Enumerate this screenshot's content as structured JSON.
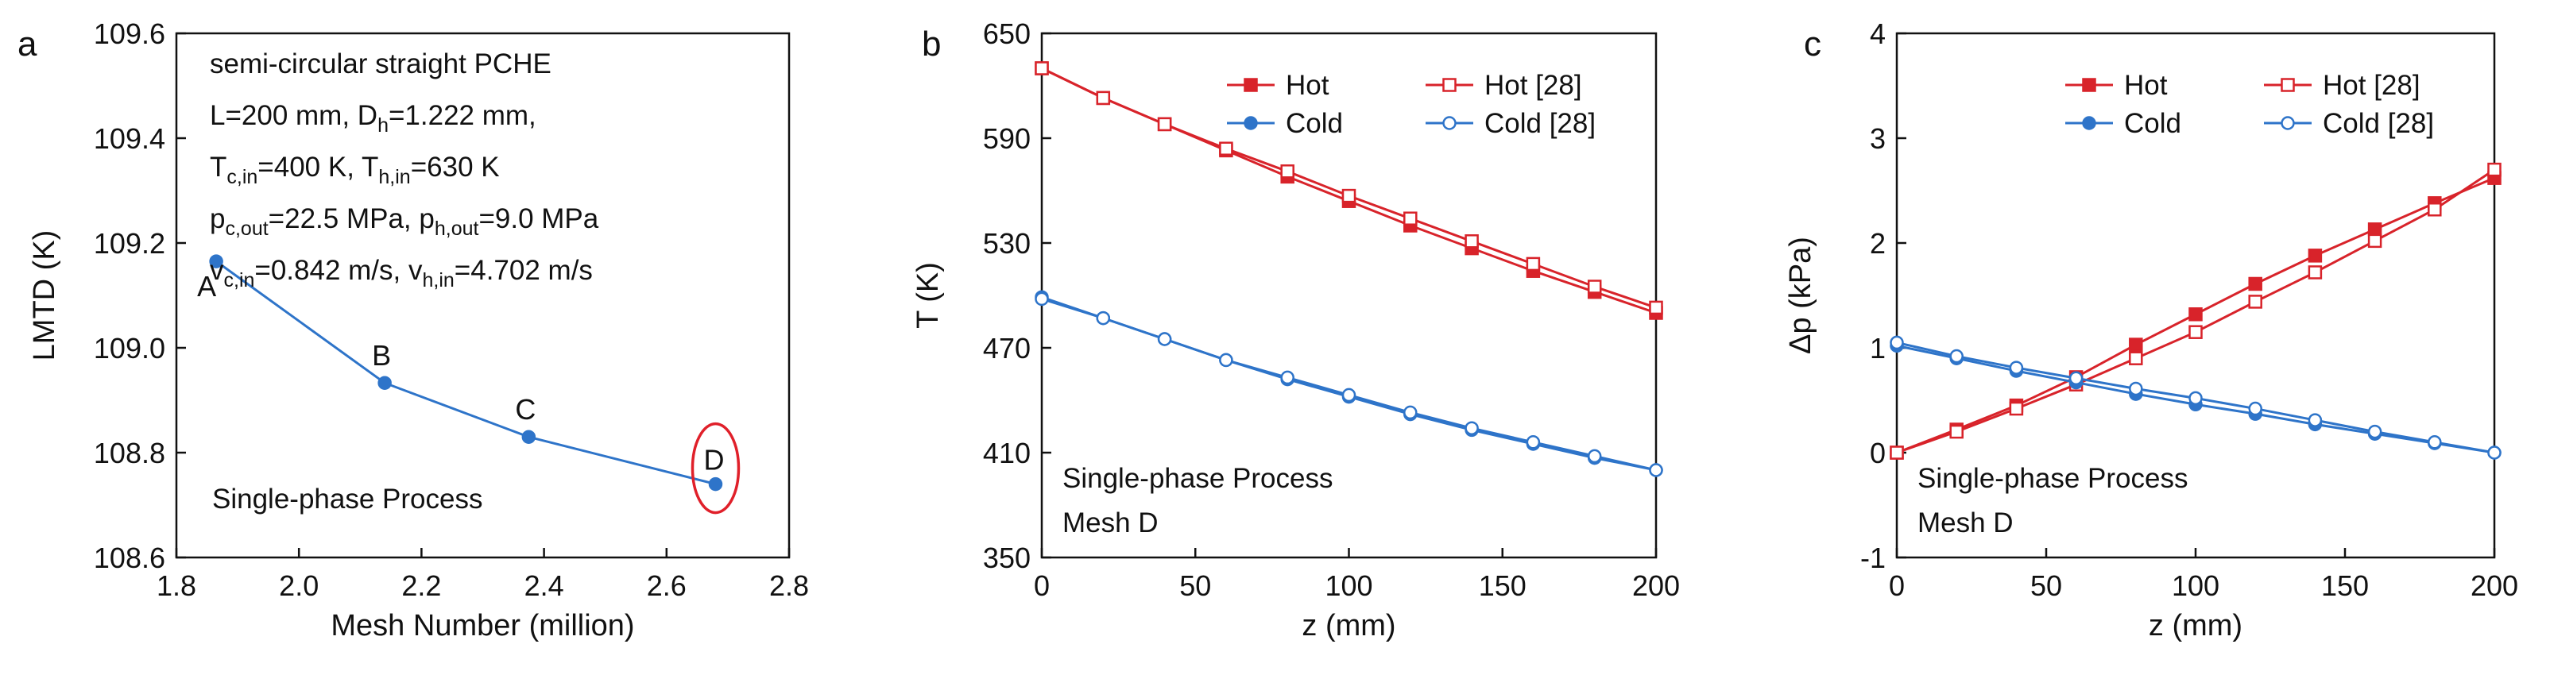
{
  "chart_data": [
    {
      "panel_label": "a",
      "type": "line",
      "xlabel": "Mesh Number (million)",
      "ylabel": "LMTD (K)",
      "xlim": [
        1.8,
        2.8
      ],
      "ylim": [
        108.6,
        109.6
      ],
      "xticks": [
        "1.8",
        "2.0",
        "2.2",
        "2.4",
        "2.6",
        "2.8"
      ],
      "yticks": [
        "108.6",
        "108.8",
        "109.0",
        "109.2",
        "109.4",
        "109.6"
      ],
      "grid": false,
      "series": [
        {
          "name": "LMTD",
          "color": "#2e74c9",
          "marker": "filled-circle",
          "x": [
            1.865,
            2.14,
            2.375,
            2.68
          ],
          "y": [
            109.165,
            108.933,
            108.83,
            108.74
          ]
        }
      ],
      "point_labels": [
        "A",
        "B",
        "C",
        "D"
      ],
      "highlight_point": "D",
      "highlight_color": "#e0202a",
      "annotation_lines": [
        {
          "t": "semi-circular straight PCHE"
        },
        {
          "parts": [
            {
              "t": "L=200 mm, D"
            },
            {
              "t": "h",
              "sub": true
            },
            {
              "t": "=1.222 mm,"
            }
          ]
        },
        {
          "parts": [
            {
              "t": "T"
            },
            {
              "t": "c,in",
              "sub": true
            },
            {
              "t": "=400 K, T"
            },
            {
              "t": "h,in",
              "sub": true
            },
            {
              "t": "=630 K"
            }
          ]
        },
        {
          "parts": [
            {
              "t": "p"
            },
            {
              "t": "c,out",
              "sub": true
            },
            {
              "t": "=22.5 MPa, p"
            },
            {
              "t": "h,out",
              "sub": true
            },
            {
              "t": "=9.0 MPa"
            }
          ]
        },
        {
          "parts": [
            {
              "t": "v"
            },
            {
              "t": "c,in",
              "sub": true
            },
            {
              "t": "=0.842 m/s, v"
            },
            {
              "t": "h,in",
              "sub": true
            },
            {
              "t": "=4.702 m/s"
            }
          ]
        }
      ],
      "note": "Single-phase Process"
    },
    {
      "panel_label": "b",
      "type": "line",
      "xlabel": "z (mm)",
      "ylabel": "T (K)",
      "xlim": [
        0,
        200
      ],
      "ylim": [
        350,
        650
      ],
      "xticks": [
        "0",
        "50",
        "100",
        "150",
        "200"
      ],
      "yticks": [
        "350",
        "410",
        "470",
        "530",
        "590",
        "650"
      ],
      "grid": false,
      "legend": [
        "Hot",
        "Hot [28]",
        "Cold",
        "Cold [28]"
      ],
      "legend_position": "top-right",
      "series": [
        {
          "name": "Hot",
          "color": "#d8232a",
          "marker": "filled-square",
          "x": [
            0,
            20,
            40,
            60,
            80,
            100,
            120,
            140,
            160,
            180,
            200
          ],
          "y": [
            630,
            613,
            598,
            583,
            568,
            554,
            540,
            527,
            514,
            502,
            490
          ]
        },
        {
          "name": "Hot [28]",
          "color": "#d8232a",
          "marker": "open-square",
          "x": [
            0,
            20,
            40,
            60,
            80,
            100,
            120,
            140,
            160,
            180,
            200
          ],
          "y": [
            630,
            613,
            598,
            584,
            571,
            557,
            544,
            531,
            518,
            505,
            493
          ]
        },
        {
          "name": "Cold",
          "color": "#2e74c9",
          "marker": "filled-circle",
          "x": [
            0,
            20,
            40,
            60,
            80,
            100,
            120,
            140,
            160,
            180,
            200
          ],
          "y": [
            499,
            487,
            475,
            463,
            452,
            442,
            432,
            423,
            415,
            407,
            400
          ]
        },
        {
          "name": "Cold [28]",
          "color": "#2e74c9",
          "marker": "open-circle",
          "x": [
            0,
            20,
            40,
            60,
            80,
            100,
            120,
            140,
            160,
            180,
            200
          ],
          "y": [
            498,
            487,
            475,
            463,
            453,
            443,
            433,
            424,
            416,
            408,
            400
          ]
        }
      ],
      "note_lines": [
        "Single-phase Process",
        "Mesh D"
      ]
    },
    {
      "panel_label": "c",
      "type": "line",
      "xlabel": "z (mm)",
      "ylabel": "Δp (kPa)",
      "xlim": [
        0,
        200
      ],
      "ylim": [
        -1,
        4
      ],
      "xticks": [
        "0",
        "50",
        "100",
        "150",
        "200"
      ],
      "yticks": [
        "-1",
        "0",
        "1",
        "2",
        "3",
        "4"
      ],
      "grid": false,
      "legend": [
        "Hot",
        "Hot [28]",
        "Cold",
        "Cold [28]"
      ],
      "legend_position": "top-right",
      "series": [
        {
          "name": "Hot",
          "color": "#d8232a",
          "marker": "filled-square",
          "x": [
            0,
            20,
            40,
            60,
            80,
            100,
            120,
            140,
            160,
            180,
            200
          ],
          "y": [
            0,
            0.22,
            0.45,
            0.72,
            1.03,
            1.32,
            1.61,
            1.88,
            2.13,
            2.38,
            2.62
          ]
        },
        {
          "name": "Hot [28]",
          "color": "#d8232a",
          "marker": "open-square",
          "x": [
            0,
            20,
            40,
            60,
            80,
            100,
            120,
            140,
            160,
            180,
            200
          ],
          "y": [
            0,
            0.2,
            0.42,
            0.65,
            0.9,
            1.15,
            1.44,
            1.72,
            2.02,
            2.32,
            2.7
          ]
        },
        {
          "name": "Cold",
          "color": "#2e74c9",
          "marker": "filled-circle",
          "x": [
            0,
            20,
            40,
            60,
            80,
            100,
            120,
            140,
            160,
            180,
            200
          ],
          "y": [
            1.02,
            0.9,
            0.78,
            0.67,
            0.56,
            0.46,
            0.37,
            0.27,
            0.18,
            0.09,
            0
          ]
        },
        {
          "name": "Cold [28]",
          "color": "#2e74c9",
          "marker": "open-circle",
          "x": [
            0,
            20,
            40,
            60,
            80,
            100,
            120,
            140,
            160,
            180,
            200
          ],
          "y": [
            1.05,
            0.92,
            0.81,
            0.71,
            0.61,
            0.52,
            0.42,
            0.31,
            0.2,
            0.1,
            0
          ]
        }
      ],
      "note_lines": [
        "Single-phase Process",
        "Mesh D"
      ]
    }
  ]
}
